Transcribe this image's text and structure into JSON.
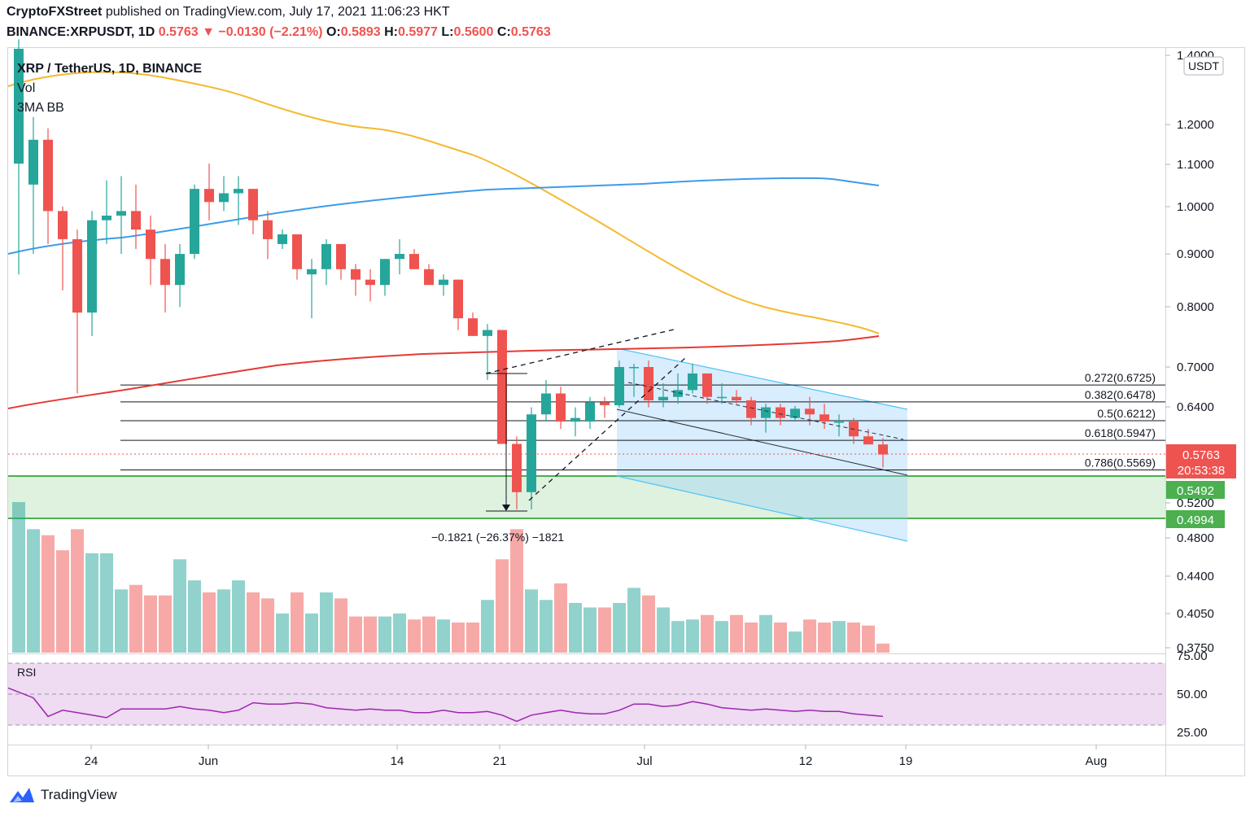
{
  "header": {
    "publisher": "CryptoFXStreet",
    "published_text": "published on TradingView.com, July 17, 2021 11:06:23 HKT",
    "symbol": "BINANCE:XRPUSDT, 1D",
    "last": "0.5763",
    "change": "−0.0130 (−2.21%)",
    "o_label": "O:",
    "o": "0.5893",
    "h_label": "H:",
    "h": "0.5977",
    "l_label": "L:",
    "l": "0.5600",
    "c_label": "C:",
    "c": "0.5763"
  },
  "legend": {
    "title": "XRP / TetherUS, 1D, BINANCE",
    "vol": "Vol",
    "bb": "3MA BB"
  },
  "currency_badge": "USDT",
  "price_badges": {
    "last": "0.5763",
    "countdown": "20:53:38",
    "support_top": "0.5492",
    "support_bottom": "0.4994"
  },
  "measure_label": "−0.1821 (−26.37%) −1821",
  "rsi_label": "RSI",
  "footer": {
    "brand": "TradingView"
  },
  "colors": {
    "up": "#26a69a",
    "down": "#ef5350",
    "ma_orange": "#f5b82e",
    "ma_blue": "#3d9be9",
    "ma_red": "#e53935",
    "channel": "#4fc3f7",
    "support": "#4caf50",
    "rsi_line": "#9c27b0"
  },
  "chart_data": {
    "type": "candlestick",
    "title": "XRP / TetherUS, 1D, BINANCE",
    "scale": "log",
    "ylim": [
      0.37,
      1.4
    ],
    "x_ticks": [
      "24",
      "Jun",
      "14",
      "21",
      "Jul",
      "12",
      "19",
      "Aug"
    ],
    "y_ticks": [
      "1.4000",
      "1.2000",
      "1.1000",
      "1.0000",
      "0.9000",
      "0.8000",
      "0.7000",
      "0.6400",
      "0.5200",
      "0.4800",
      "0.4400",
      "0.4050",
      "0.3750"
    ],
    "candles": [
      {
        "o": 1.1,
        "h": 1.45,
        "l": 0.86,
        "c": 1.42
      },
      {
        "o": 1.05,
        "h": 1.22,
        "l": 0.9,
        "c": 1.16
      },
      {
        "o": 1.16,
        "h": 1.19,
        "l": 0.92,
        "c": 0.99
      },
      {
        "o": 0.99,
        "h": 1.0,
        "l": 0.83,
        "c": 0.93
      },
      {
        "o": 0.93,
        "h": 0.95,
        "l": 0.66,
        "c": 0.79
      },
      {
        "o": 0.79,
        "h": 0.99,
        "l": 0.75,
        "c": 0.97
      },
      {
        "o": 0.97,
        "h": 1.06,
        "l": 0.92,
        "c": 0.98
      },
      {
        "o": 0.98,
        "h": 1.07,
        "l": 0.9,
        "c": 0.99
      },
      {
        "o": 0.99,
        "h": 1.05,
        "l": 0.91,
        "c": 0.95
      },
      {
        "o": 0.95,
        "h": 0.98,
        "l": 0.84,
        "c": 0.89
      },
      {
        "o": 0.89,
        "h": 0.92,
        "l": 0.79,
        "c": 0.84
      },
      {
        "o": 0.84,
        "h": 0.92,
        "l": 0.8,
        "c": 0.9
      },
      {
        "o": 0.9,
        "h": 1.05,
        "l": 0.89,
        "c": 1.04
      },
      {
        "o": 1.04,
        "h": 1.1,
        "l": 0.97,
        "c": 1.01
      },
      {
        "o": 1.01,
        "h": 1.07,
        "l": 0.99,
        "c": 1.03
      },
      {
        "o": 1.03,
        "h": 1.07,
        "l": 0.96,
        "c": 1.04
      },
      {
        "o": 1.04,
        "h": 1.04,
        "l": 0.94,
        "c": 0.97
      },
      {
        "o": 0.97,
        "h": 0.99,
        "l": 0.89,
        "c": 0.93
      },
      {
        "o": 0.92,
        "h": 0.95,
        "l": 0.91,
        "c": 0.94
      },
      {
        "o": 0.94,
        "h": 0.94,
        "l": 0.85,
        "c": 0.87
      },
      {
        "o": 0.86,
        "h": 0.89,
        "l": 0.78,
        "c": 0.87
      },
      {
        "o": 0.87,
        "h": 0.93,
        "l": 0.84,
        "c": 0.92
      },
      {
        "o": 0.92,
        "h": 0.92,
        "l": 0.85,
        "c": 0.87
      },
      {
        "o": 0.87,
        "h": 0.88,
        "l": 0.82,
        "c": 0.85
      },
      {
        "o": 0.85,
        "h": 0.87,
        "l": 0.81,
        "c": 0.84
      },
      {
        "o": 0.84,
        "h": 0.89,
        "l": 0.82,
        "c": 0.89
      },
      {
        "o": 0.89,
        "h": 0.93,
        "l": 0.86,
        "c": 0.9
      },
      {
        "o": 0.9,
        "h": 0.91,
        "l": 0.87,
        "c": 0.87
      },
      {
        "o": 0.87,
        "h": 0.88,
        "l": 0.84,
        "c": 0.84
      },
      {
        "o": 0.84,
        "h": 0.86,
        "l": 0.82,
        "c": 0.85
      },
      {
        "o": 0.85,
        "h": 0.85,
        "l": 0.76,
        "c": 0.78
      },
      {
        "o": 0.78,
        "h": 0.79,
        "l": 0.75,
        "c": 0.75
      },
      {
        "o": 0.75,
        "h": 0.77,
        "l": 0.68,
        "c": 0.76
      },
      {
        "o": 0.76,
        "h": 0.76,
        "l": 0.59,
        "c": 0.59
      },
      {
        "o": 0.59,
        "h": 0.6,
        "l": 0.51,
        "c": 0.53
      },
      {
        "o": 0.53,
        "h": 0.64,
        "l": 0.51,
        "c": 0.63
      },
      {
        "o": 0.63,
        "h": 0.68,
        "l": 0.62,
        "c": 0.66
      },
      {
        "o": 0.66,
        "h": 0.67,
        "l": 0.61,
        "c": 0.62
      },
      {
        "o": 0.62,
        "h": 0.64,
        "l": 0.6,
        "c": 0.625
      },
      {
        "o": 0.62,
        "h": 0.655,
        "l": 0.61,
        "c": 0.647
      },
      {
        "o": 0.647,
        "h": 0.655,
        "l": 0.625,
        "c": 0.643
      },
      {
        "o": 0.643,
        "h": 0.71,
        "l": 0.64,
        "c": 0.7
      },
      {
        "o": 0.7,
        "h": 0.705,
        "l": 0.655,
        "c": 0.7
      },
      {
        "o": 0.7,
        "h": 0.71,
        "l": 0.64,
        "c": 0.65
      },
      {
        "o": 0.65,
        "h": 0.675,
        "l": 0.64,
        "c": 0.655
      },
      {
        "o": 0.655,
        "h": 0.69,
        "l": 0.645,
        "c": 0.665
      },
      {
        "o": 0.665,
        "h": 0.705,
        "l": 0.66,
        "c": 0.69
      },
      {
        "o": 0.69,
        "h": 0.69,
        "l": 0.645,
        "c": 0.655
      },
      {
        "o": 0.655,
        "h": 0.675,
        "l": 0.645,
        "c": 0.655
      },
      {
        "o": 0.655,
        "h": 0.665,
        "l": 0.645,
        "c": 0.65
      },
      {
        "o": 0.65,
        "h": 0.655,
        "l": 0.615,
        "c": 0.625
      },
      {
        "o": 0.625,
        "h": 0.645,
        "l": 0.605,
        "c": 0.64
      },
      {
        "o": 0.64,
        "h": 0.645,
        "l": 0.615,
        "c": 0.625
      },
      {
        "o": 0.625,
        "h": 0.642,
        "l": 0.62,
        "c": 0.638
      },
      {
        "o": 0.638,
        "h": 0.655,
        "l": 0.615,
        "c": 0.63
      },
      {
        "o": 0.63,
        "h": 0.645,
        "l": 0.61,
        "c": 0.62
      },
      {
        "o": 0.62,
        "h": 0.63,
        "l": 0.6,
        "c": 0.62
      },
      {
        "o": 0.62,
        "h": 0.625,
        "l": 0.59,
        "c": 0.6
      },
      {
        "o": 0.6,
        "h": 0.61,
        "l": 0.59,
        "c": 0.5893
      },
      {
        "o": 0.5893,
        "h": 0.5977,
        "l": 0.56,
        "c": 0.5763
      }
    ],
    "volume_relative": [
      1.0,
      0.82,
      0.78,
      0.68,
      0.82,
      0.66,
      0.66,
      0.42,
      0.45,
      0.38,
      0.38,
      0.62,
      0.48,
      0.4,
      0.42,
      0.48,
      0.4,
      0.36,
      0.26,
      0.4,
      0.26,
      0.4,
      0.36,
      0.24,
      0.24,
      0.24,
      0.26,
      0.22,
      0.24,
      0.22,
      0.2,
      0.2,
      0.35,
      0.62,
      0.82,
      0.42,
      0.35,
      0.46,
      0.33,
      0.3,
      0.3,
      0.33,
      0.43,
      0.38,
      0.3,
      0.21,
      0.22,
      0.25,
      0.21,
      0.25,
      0.2,
      0.25,
      0.2,
      0.14,
      0.22,
      0.2,
      0.21,
      0.2,
      0.18,
      0.06
    ],
    "rsi": {
      "levels": [
        75.0,
        50.0,
        25.0
      ],
      "upper_band": 70,
      "lower_band": 30,
      "values": [
        55,
        47,
        32,
        37,
        35,
        33,
        31,
        38,
        38,
        38,
        38,
        40,
        38,
        37,
        35,
        37,
        43,
        42,
        42,
        43,
        42,
        39,
        38,
        37,
        38,
        37,
        37,
        35,
        35,
        37,
        35,
        35,
        36,
        33,
        28,
        33,
        35,
        37,
        35,
        34,
        34,
        37,
        42,
        42,
        40,
        41,
        44,
        42,
        39,
        38,
        37,
        38,
        37,
        36,
        37,
        36,
        36,
        34,
        33,
        32
      ]
    },
    "fib_levels": [
      {
        "ratio": "0.272",
        "price": "0.6725"
      },
      {
        "ratio": "0.382",
        "price": "0.6478"
      },
      {
        "ratio": "0.5",
        "price": "0.6212"
      },
      {
        "ratio": "0.618",
        "price": "0.5947"
      },
      {
        "ratio": "0.786",
        "price": "0.5569"
      }
    ],
    "supports": [
      0.5492,
      0.4994
    ]
  }
}
